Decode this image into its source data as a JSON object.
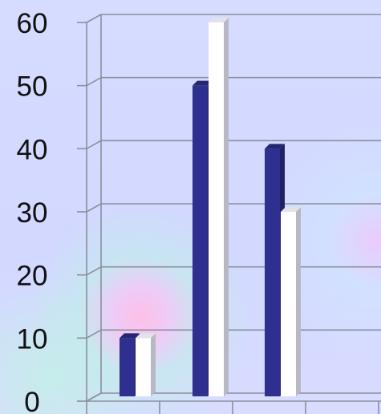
{
  "chart_data": {
    "type": "bar",
    "categories": [
      "",
      "",
      ""
    ],
    "series": [
      {
        "values": [
          10,
          50,
          40
        ],
        "color": "#2e2f8f"
      },
      {
        "values": [
          10,
          60,
          30
        ],
        "color": "#ffffff"
      }
    ],
    "ylim": [
      0,
      60
    ],
    "yticks": [
      "0",
      "10",
      "20",
      "30",
      "40",
      "50",
      "60"
    ],
    "grid": true,
    "legend": "none"
  }
}
